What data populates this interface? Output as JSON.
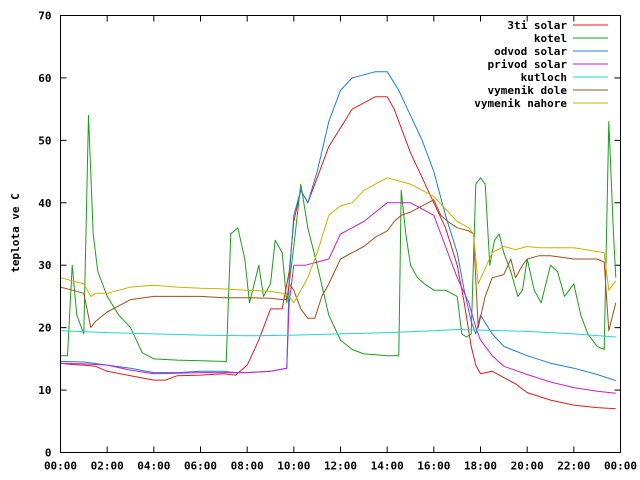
{
  "chart_data": {
    "type": "line",
    "title": "",
    "xlabel": "",
    "ylabel": "teplota ve C",
    "xlim": [
      0,
      24
    ],
    "ylim": [
      0,
      70
    ],
    "grid": false,
    "legend_position": "top-right",
    "x_ticks": [
      {
        "value": 0,
        "label": "00:00"
      },
      {
        "value": 2,
        "label": "02:00"
      },
      {
        "value": 4,
        "label": "04:00"
      },
      {
        "value": 6,
        "label": "06:00"
      },
      {
        "value": 8,
        "label": "08:00"
      },
      {
        "value": 10,
        "label": "10:00"
      },
      {
        "value": 12,
        "label": "12:00"
      },
      {
        "value": 14,
        "label": "14:00"
      },
      {
        "value": 16,
        "label": "16:00"
      },
      {
        "value": 18,
        "label": "18:00"
      },
      {
        "value": 20,
        "label": "20:00"
      },
      {
        "value": 22,
        "label": "22:00"
      },
      {
        "value": 24,
        "label": "00:00"
      }
    ],
    "y_ticks": [
      {
        "value": 0,
        "label": "0"
      },
      {
        "value": 10,
        "label": "10"
      },
      {
        "value": 20,
        "label": "20"
      },
      {
        "value": 30,
        "label": "30"
      },
      {
        "value": 40,
        "label": "40"
      },
      {
        "value": 50,
        "label": "50"
      },
      {
        "value": 60,
        "label": "60"
      },
      {
        "value": 70,
        "label": "70"
      }
    ],
    "series": [
      {
        "name": "3ti solar",
        "color": "#e41a1c",
        "x": [
          0,
          0.5,
          1,
          1.5,
          2,
          3,
          4,
          4.5,
          5,
          6,
          7,
          7.5,
          8,
          8.5,
          9,
          9.5,
          9.8,
          10,
          10.3,
          10.6,
          11,
          11.5,
          12,
          12.5,
          13,
          13.5,
          14,
          14.3,
          14.6,
          15,
          15.5,
          16,
          16.5,
          17,
          17.3,
          17.6,
          17.8,
          18,
          18.5,
          19,
          19.5,
          20,
          21,
          22,
          23,
          23.8
        ],
        "y": [
          14.3,
          14.1,
          14,
          13.8,
          13,
          12.3,
          11.6,
          11.6,
          12.3,
          12.4,
          12.6,
          12.4,
          14,
          18,
          23,
          23,
          29,
          37,
          42,
          40,
          44,
          49,
          52,
          55,
          56,
          57,
          57,
          55,
          52,
          48,
          44,
          40,
          36,
          30,
          24,
          17,
          14,
          12.6,
          13,
          12,
          11,
          9.6,
          8.4,
          7.6,
          7.2,
          7
        ]
      },
      {
        "name": "kotel",
        "color": "#1a9f1a",
        "x": [
          0,
          0.3,
          0.5,
          0.7,
          1,
          1.2,
          1.4,
          1.6,
          2,
          2.5,
          3,
          3.5,
          4,
          5,
          6,
          7,
          7.1,
          7.3,
          7.6,
          7.9,
          8.1,
          8.3,
          8.5,
          8.7,
          9,
          9.2,
          9.5,
          9.7,
          10,
          10.3,
          10.6,
          11,
          11.5,
          12,
          12.5,
          13,
          14,
          14.5,
          14.6,
          14.8,
          15,
          15.3,
          15.6,
          16,
          16.5,
          17,
          17.2,
          17.4,
          17.6,
          17.8,
          18,
          18.2,
          18.4,
          18.6,
          18.8,
          19,
          19.3,
          19.6,
          19.8,
          20,
          20.3,
          20.6,
          21,
          21.3,
          21.6,
          22,
          22.3,
          22.6,
          23,
          23.3,
          23.5,
          23.7,
          23.8
        ],
        "y": [
          15.5,
          15.5,
          30,
          22,
          19,
          54,
          35,
          29,
          25,
          22,
          20,
          16,
          15,
          14.8,
          14.7,
          14.6,
          14.5,
          35,
          36,
          31,
          24,
          27,
          30,
          25,
          27,
          34,
          32,
          24,
          33,
          43,
          36,
          30,
          22,
          18,
          16.5,
          15.8,
          15.5,
          15.5,
          42,
          35,
          30,
          28,
          27,
          26,
          26,
          25,
          19,
          18.5,
          19,
          43,
          44,
          43,
          30,
          34,
          35,
          32,
          29,
          25,
          26,
          31,
          26,
          24,
          30,
          29,
          25,
          27,
          22,
          19,
          17,
          16.5,
          53,
          35,
          28
        ]
      },
      {
        "name": "odvod solar",
        "color": "#1c7ed6",
        "x": [
          0,
          1,
          2,
          3,
          4,
          5,
          6,
          7,
          7.5,
          8,
          9,
          9.7,
          9.8,
          10,
          10.3,
          10.6,
          11,
          11.5,
          12,
          12.5,
          13,
          13.5,
          14,
          14.5,
          15,
          15.5,
          16,
          16.5,
          17,
          17.3,
          17.6,
          17.8,
          18,
          18.5,
          19,
          20,
          21,
          22,
          23,
          23.8
        ],
        "y": [
          14.6,
          14.5,
          14,
          13.5,
          12.8,
          12.8,
          13,
          13,
          12.8,
          12.8,
          13,
          13.5,
          28,
          38,
          42,
          40,
          45,
          53,
          58,
          60,
          60.5,
          61,
          61,
          58,
          54,
          50,
          45,
          38,
          32,
          26,
          21,
          19,
          22,
          19,
          17,
          15.5,
          14.3,
          13.5,
          12.5,
          11.5
        ]
      },
      {
        "name": "privod solar",
        "color": "#c71fd6",
        "x": [
          0,
          1,
          2,
          3,
          4,
          5,
          6,
          7,
          8,
          9,
          9.7,
          9.8,
          10,
          10.5,
          11,
          11.5,
          12,
          12.5,
          13,
          13.5,
          14,
          14.5,
          15,
          15.5,
          16,
          16.5,
          17,
          17.5,
          17.8,
          18,
          18.5,
          19,
          20,
          21,
          22,
          23,
          23.8
        ],
        "y": [
          14.3,
          14.2,
          14,
          13.2,
          12.6,
          12.7,
          12.8,
          12.8,
          12.8,
          13,
          13.5,
          24,
          30,
          30,
          30.5,
          31,
          35,
          36,
          37,
          38.5,
          40,
          40,
          40,
          39,
          38,
          33,
          28,
          24,
          20,
          18,
          15.5,
          13.8,
          12.5,
          11.3,
          10.4,
          9.8,
          9.5
        ]
      },
      {
        "name": "kutloch",
        "color": "#22d4d4",
        "x": [
          0,
          2,
          4,
          6,
          8,
          10,
          12,
          14,
          16,
          17,
          18,
          20,
          22,
          23.8
        ],
        "y": [
          19.5,
          19.2,
          19,
          18.8,
          18.7,
          18.8,
          19,
          19.2,
          19.5,
          19.7,
          19.6,
          19.4,
          19,
          18.5
        ],
        "y_note_removed": true
      },
      {
        "name": "vymenik dole",
        "color": "#a0501a",
        "x": [
          0,
          0.5,
          1,
          1.3,
          1.5,
          2,
          3,
          4,
          5,
          6,
          7,
          8,
          9,
          9.5,
          9.7,
          9.8,
          10,
          10.3,
          10.6,
          10.9,
          11.2,
          11.5,
          12,
          12.5,
          13,
          13.5,
          14,
          14.3,
          14.6,
          15,
          15.5,
          16,
          16.3,
          16.6,
          17,
          17.5,
          17.7,
          17.9,
          18.2,
          18.5,
          19,
          19.3,
          19.5,
          19.8,
          20,
          20.5,
          21,
          22,
          23,
          23.3,
          23.5,
          23.8
        ],
        "y": [
          26.5,
          26,
          25.5,
          20,
          21,
          22.5,
          24.5,
          25,
          25,
          25,
          24.8,
          24.8,
          24.7,
          24.5,
          24.5,
          27,
          26,
          23,
          21.5,
          21.5,
          25,
          27,
          31,
          32,
          33,
          34.5,
          35.5,
          37,
          38,
          38.5,
          39.5,
          40.5,
          38,
          37,
          36,
          35.5,
          35,
          20,
          25,
          28,
          28.5,
          31,
          28,
          30,
          31,
          31.5,
          31.5,
          31,
          31,
          30.5,
          19.5,
          24
        ]
      },
      {
        "name": "vymenik nahore",
        "color": "#c8b400",
        "x": [
          0,
          0.5,
          1,
          1.3,
          1.5,
          2,
          3,
          4,
          5,
          6,
          7,
          8,
          9,
          9.5,
          9.8,
          10,
          10.3,
          10.6,
          11,
          11.5,
          12,
          12.5,
          13,
          13.5,
          14,
          14.5,
          15,
          15.5,
          16,
          16.5,
          17,
          17.5,
          17.7,
          17.9,
          18.2,
          18.5,
          19,
          19.5,
          20,
          20.5,
          21,
          22,
          23,
          23.3,
          23.5,
          23.8
        ],
        "y": [
          28,
          27.5,
          27,
          25,
          25.5,
          25.5,
          26.5,
          26.8,
          26.5,
          26.3,
          26.2,
          26,
          25.8,
          25.5,
          25,
          24,
          26,
          28,
          32,
          38,
          39.5,
          40,
          42,
          43,
          44,
          43.5,
          43,
          42,
          41,
          39,
          37,
          36,
          35,
          27,
          29.5,
          32,
          33,
          32.5,
          33,
          32.8,
          32.8,
          32.8,
          32.2,
          32,
          26,
          27.5
        ]
      }
    ]
  }
}
